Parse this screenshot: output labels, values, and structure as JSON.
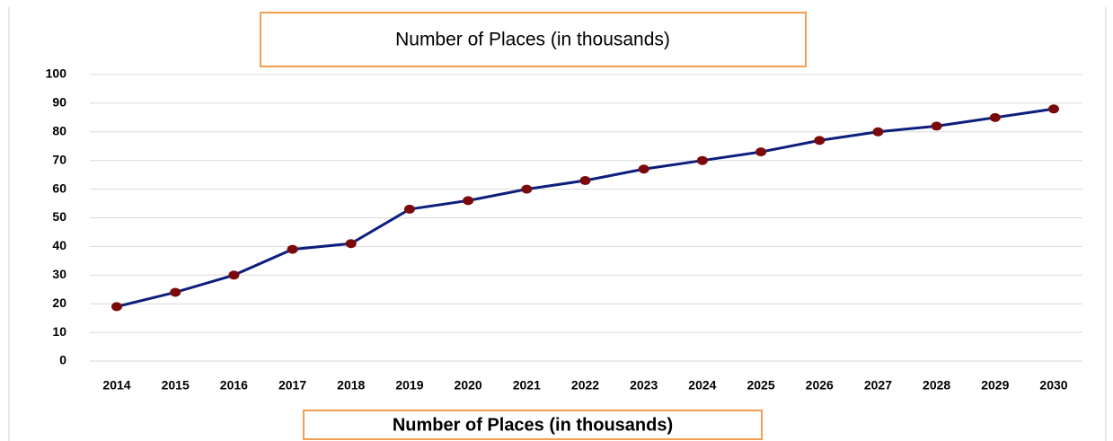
{
  "chart_data": {
    "type": "line",
    "title": "Number of Places (in thousands)",
    "categories": [
      "2014",
      "2015",
      "2016",
      "2017",
      "2018",
      "2019",
      "2020",
      "2021",
      "2022",
      "2023",
      "2024",
      "2025",
      "2026",
      "2027",
      "2028",
      "2029",
      "2030"
    ],
    "series": [
      {
        "name": "Number of Places (in thousands)",
        "color": "#0d1f7d",
        "marker_color": "#7b0a0a",
        "values": [
          19,
          24,
          30,
          39,
          41,
          53,
          56,
          60,
          63,
          67,
          70,
          73,
          77,
          80,
          82,
          85,
          88
        ]
      }
    ],
    "ylim": [
      0,
      100
    ],
    "yticks": [
      0,
      10,
      20,
      30,
      40,
      50,
      60,
      70,
      80,
      90,
      100
    ],
    "grid": true,
    "legend": "bottom"
  }
}
